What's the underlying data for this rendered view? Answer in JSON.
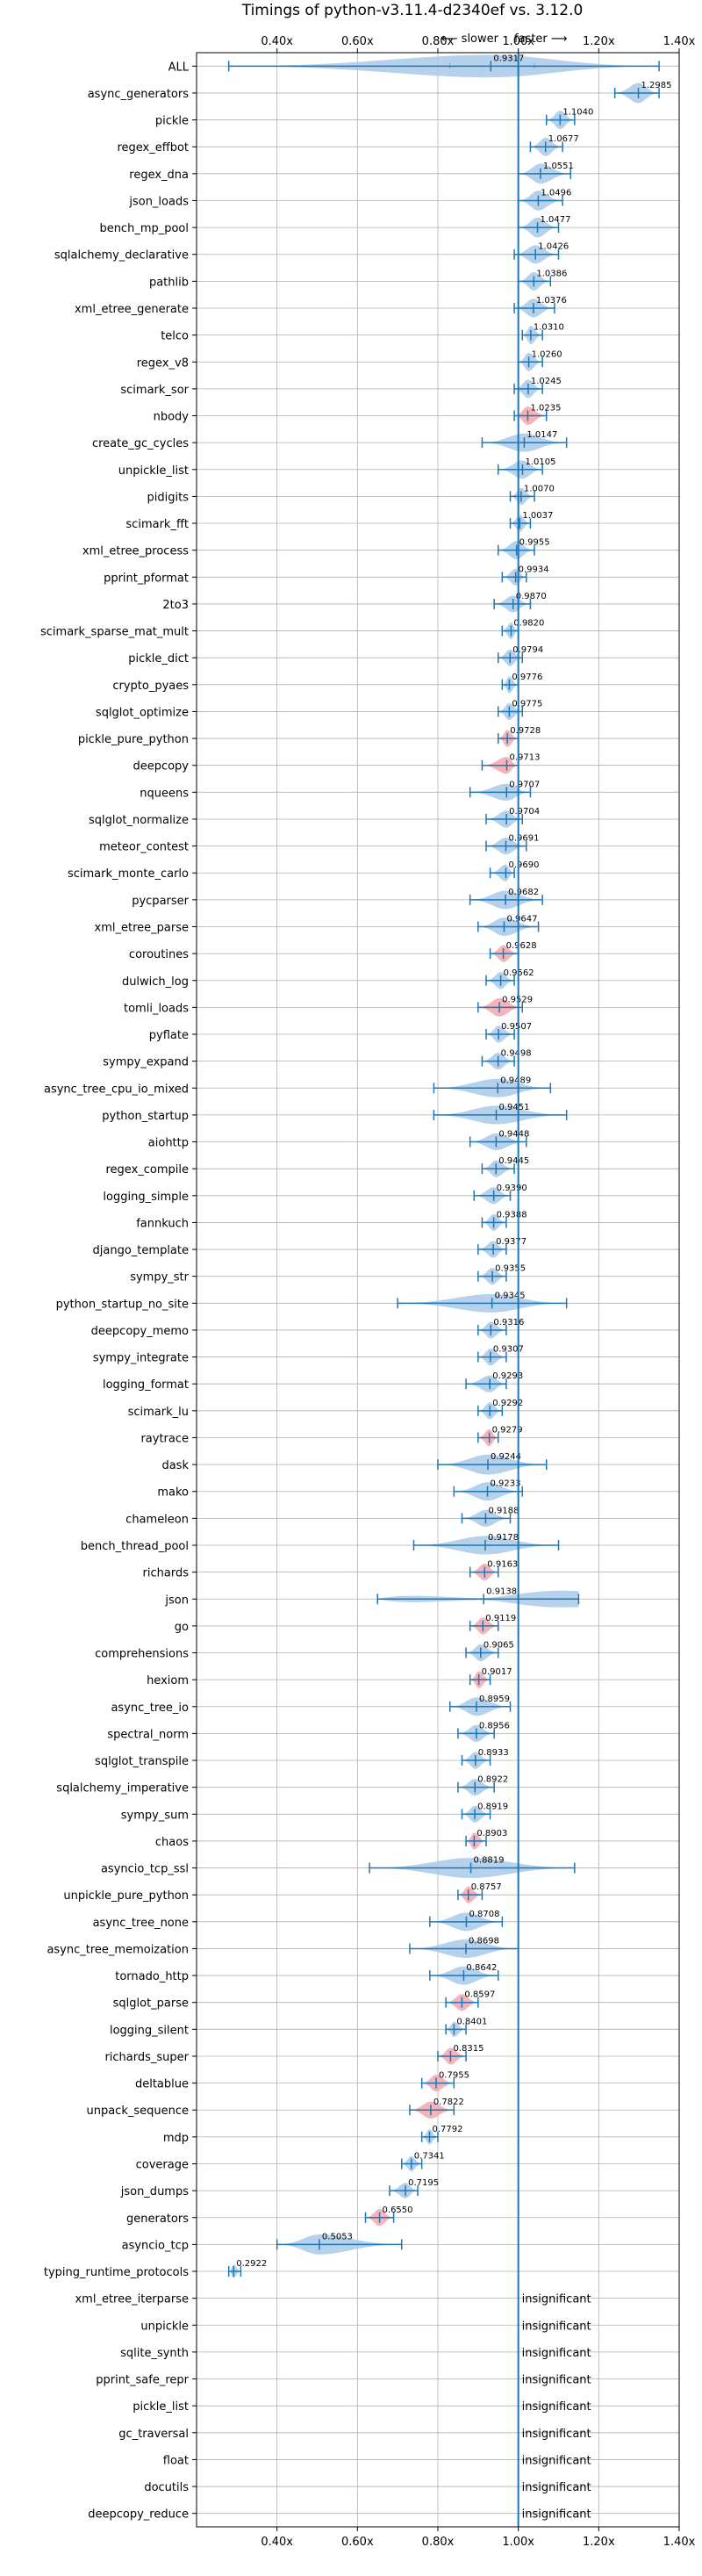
{
  "chart_data": {
    "type": "violin",
    "title": "Timings of python-v3.11.4-d2340ef vs. 3.12.0",
    "slower_label": "⟵ slower",
    "faster_label": "faster ⟶",
    "xlim": [
      0.2,
      1.4
    ],
    "xticks": [
      0.4,
      0.6,
      0.8,
      1.0,
      1.2,
      1.4
    ],
    "xtick_labels": [
      "0.40x",
      "0.60x",
      "0.80x",
      "1.00x",
      "1.20x",
      "1.40x"
    ],
    "reference_line": 1.0,
    "grid": true,
    "colors": {
      "violin": "#a9c9e8",
      "highlight": "#f5a6ad",
      "line": "#1f77b4"
    },
    "benchmarks": [
      {
        "name": "ALL",
        "median": 0.9317,
        "label": "0.9317",
        "min": 0.28,
        "max": 1.35,
        "q1": 0.83,
        "q3": 1.04,
        "width": 0.25
      },
      {
        "name": "async_generators",
        "median": 1.2985,
        "label": "1.2985",
        "min": 1.24,
        "max": 1.35,
        "width": 0.06
      },
      {
        "name": "pickle",
        "median": 1.104,
        "label": "1.1040",
        "min": 1.07,
        "max": 1.14,
        "width": 0.05
      },
      {
        "name": "regex_effbot",
        "median": 1.0677,
        "label": "1.0677",
        "min": 1.03,
        "max": 1.11,
        "width": 0.05
      },
      {
        "name": "regex_dna",
        "median": 1.0551,
        "label": "1.0551",
        "min": 1.0,
        "max": 1.13,
        "width": 0.06
      },
      {
        "name": "json_loads",
        "median": 1.0496,
        "label": "1.0496",
        "min": 1.0,
        "max": 1.11,
        "width": 0.06
      },
      {
        "name": "bench_mp_pool",
        "median": 1.0477,
        "label": "1.0477",
        "min": 1.0,
        "max": 1.1,
        "width": 0.06
      },
      {
        "name": "sqlalchemy_declarative",
        "median": 1.0426,
        "label": "1.0426",
        "min": 0.99,
        "max": 1.1,
        "width": 0.05
      },
      {
        "name": "pathlib",
        "median": 1.0386,
        "label": "1.0386",
        "min": 1.0,
        "max": 1.08,
        "width": 0.05
      },
      {
        "name": "xml_etree_generate",
        "median": 1.0376,
        "label": "1.0376",
        "min": 0.99,
        "max": 1.09,
        "width": 0.05
      },
      {
        "name": "telco",
        "median": 1.031,
        "label": "1.0310",
        "min": 1.01,
        "max": 1.06,
        "width": 0.05
      },
      {
        "name": "regex_v8",
        "median": 1.026,
        "label": "1.0260",
        "min": 1.0,
        "max": 1.06,
        "width": 0.05
      },
      {
        "name": "scimark_sor",
        "median": 1.0245,
        "label": "1.0245",
        "min": 0.99,
        "max": 1.06,
        "width": 0.05
      },
      {
        "name": "nbody",
        "median": 1.0235,
        "label": "1.0235",
        "min": 0.99,
        "max": 1.07,
        "width": 0.05,
        "highlight": true
      },
      {
        "name": "create_gc_cycles",
        "median": 1.0147,
        "label": "1.0147",
        "min": 0.91,
        "max": 1.12,
        "width": 0.05
      },
      {
        "name": "unpickle_list",
        "median": 1.0105,
        "label": "1.0105",
        "min": 0.95,
        "max": 1.06,
        "width": 0.05
      },
      {
        "name": "pidigits",
        "median": 1.007,
        "label": "1.0070",
        "min": 0.98,
        "max": 1.04,
        "width": 0.04
      },
      {
        "name": "scimark_fft",
        "median": 1.0037,
        "label": "1.0037",
        "min": 0.98,
        "max": 1.03,
        "width": 0.04
      },
      {
        "name": "xml_etree_process",
        "median": 0.9955,
        "label": "0.9955",
        "min": 0.95,
        "max": 1.04,
        "width": 0.05
      },
      {
        "name": "pprint_pformat",
        "median": 0.9934,
        "label": "0.9934",
        "min": 0.96,
        "max": 1.02,
        "width": 0.04
      },
      {
        "name": "2to3",
        "median": 0.987,
        "label": "0.9870",
        "min": 0.94,
        "max": 1.03,
        "width": 0.04
      },
      {
        "name": "scimark_sparse_mat_mult",
        "median": 0.982,
        "label": "0.9820",
        "min": 0.96,
        "max": 1.0,
        "width": 0.04
      },
      {
        "name": "pickle_dict",
        "median": 0.9794,
        "label": "0.9794",
        "min": 0.95,
        "max": 1.01,
        "width": 0.04
      },
      {
        "name": "crypto_pyaes",
        "median": 0.9776,
        "label": "0.9776",
        "min": 0.96,
        "max": 1.0,
        "width": 0.04
      },
      {
        "name": "sqlglot_optimize",
        "median": 0.9775,
        "label": "0.9775",
        "min": 0.95,
        "max": 1.01,
        "width": 0.04
      },
      {
        "name": "pickle_pure_python",
        "median": 0.9728,
        "label": "0.9728",
        "min": 0.95,
        "max": 1.0,
        "width": 0.04,
        "highlight": true
      },
      {
        "name": "deepcopy",
        "median": 0.9713,
        "label": "0.9713",
        "min": 0.91,
        "max": 1.0,
        "width": 0.04,
        "highlight": true
      },
      {
        "name": "nqueens",
        "median": 0.9707,
        "label": "0.9707",
        "min": 0.88,
        "max": 1.03,
        "width": 0.04
      },
      {
        "name": "sqlglot_normalize",
        "median": 0.9704,
        "label": "0.9704",
        "min": 0.92,
        "max": 1.01,
        "width": 0.04
      },
      {
        "name": "meteor_contest",
        "median": 0.9691,
        "label": "0.9691",
        "min": 0.92,
        "max": 1.02,
        "width": 0.04
      },
      {
        "name": "scimark_monte_carlo",
        "median": 0.969,
        "label": "0.9690",
        "min": 0.93,
        "max": 0.99,
        "width": 0.04
      },
      {
        "name": "pycparser",
        "median": 0.9682,
        "label": "0.9682",
        "min": 0.88,
        "max": 1.06,
        "width": 0.05
      },
      {
        "name": "xml_etree_parse",
        "median": 0.9647,
        "label": "0.9647",
        "min": 0.9,
        "max": 1.05,
        "width": 0.05
      },
      {
        "name": "coroutines",
        "median": 0.9628,
        "label": "0.9628",
        "min": 0.93,
        "max": 1.0,
        "width": 0.04,
        "highlight": true
      },
      {
        "name": "dulwich_log",
        "median": 0.9562,
        "label": "0.9562",
        "min": 0.92,
        "max": 0.99,
        "width": 0.04
      },
      {
        "name": "tomli_loads",
        "median": 0.9529,
        "label": "0.9529",
        "min": 0.9,
        "max": 1.01,
        "width": 0.05,
        "highlight": true
      },
      {
        "name": "pyflate",
        "median": 0.9507,
        "label": "0.9507",
        "min": 0.92,
        "max": 0.99,
        "width": 0.04
      },
      {
        "name": "sympy_expand",
        "median": 0.9498,
        "label": "0.9498",
        "min": 0.91,
        "max": 0.99,
        "width": 0.04
      },
      {
        "name": "async_tree_cpu_io_mixed",
        "median": 0.9489,
        "label": "0.9489",
        "min": 0.79,
        "max": 1.08,
        "width": 0.05
      },
      {
        "name": "python_startup",
        "median": 0.9451,
        "label": "0.9451",
        "min": 0.79,
        "max": 1.12,
        "width": 0.05
      },
      {
        "name": "aiohttp",
        "median": 0.9448,
        "label": "0.9448",
        "min": 0.88,
        "max": 1.02,
        "width": 0.04
      },
      {
        "name": "regex_compile",
        "median": 0.9445,
        "label": "0.9445",
        "min": 0.91,
        "max": 0.99,
        "width": 0.04
      },
      {
        "name": "logging_simple",
        "median": 0.939,
        "label": "0.9390",
        "min": 0.89,
        "max": 0.98,
        "width": 0.04
      },
      {
        "name": "fannkuch",
        "median": 0.9388,
        "label": "0.9388",
        "min": 0.91,
        "max": 0.97,
        "width": 0.04
      },
      {
        "name": "django_template",
        "median": 0.9377,
        "label": "0.9377",
        "min": 0.9,
        "max": 0.97,
        "width": 0.04
      },
      {
        "name": "sympy_str",
        "median": 0.9355,
        "label": "0.9355",
        "min": 0.9,
        "max": 0.97,
        "width": 0.04
      },
      {
        "name": "python_startup_no_site",
        "median": 0.9345,
        "label": "0.9345",
        "min": 0.7,
        "max": 1.12,
        "width": 0.05
      },
      {
        "name": "deepcopy_memo",
        "median": 0.9316,
        "label": "0.9316",
        "min": 0.9,
        "max": 0.97,
        "width": 0.04
      },
      {
        "name": "sympy_integrate",
        "median": 0.9307,
        "label": "0.9307",
        "min": 0.9,
        "max": 0.97,
        "width": 0.04
      },
      {
        "name": "logging_format",
        "median": 0.9293,
        "label": "0.9293",
        "min": 0.87,
        "max": 0.97,
        "width": 0.04
      },
      {
        "name": "scimark_lu",
        "median": 0.9292,
        "label": "0.9292",
        "min": 0.9,
        "max": 0.96,
        "width": 0.04
      },
      {
        "name": "raytrace",
        "median": 0.9279,
        "label": "0.9279",
        "min": 0.9,
        "max": 0.95,
        "width": 0.04,
        "highlight": true
      },
      {
        "name": "dask",
        "median": 0.9244,
        "label": "0.9244",
        "min": 0.8,
        "max": 1.07,
        "width": 0.06
      },
      {
        "name": "mako",
        "median": 0.9233,
        "label": "0.9233",
        "min": 0.84,
        "max": 1.01,
        "width": 0.05
      },
      {
        "name": "chameleon",
        "median": 0.9188,
        "label": "0.9188",
        "min": 0.86,
        "max": 0.98,
        "width": 0.04
      },
      {
        "name": "bench_thread_pool",
        "median": 0.9178,
        "label": "0.9178",
        "min": 0.74,
        "max": 1.1,
        "width": 0.05
      },
      {
        "name": "richards",
        "median": 0.9163,
        "label": "0.9163",
        "min": 0.88,
        "max": 0.95,
        "width": 0.04,
        "highlight": true
      },
      {
        "name": "json",
        "median": 0.9138,
        "label": "0.9138",
        "min": 0.65,
        "max": 1.15,
        "width": 0.06,
        "bimodal": true
      },
      {
        "name": "go",
        "median": 0.9119,
        "label": "0.9119",
        "min": 0.88,
        "max": 0.95,
        "width": 0.04,
        "highlight": true
      },
      {
        "name": "comprehensions",
        "median": 0.9065,
        "label": "0.9065",
        "min": 0.87,
        "max": 0.95,
        "width": 0.04
      },
      {
        "name": "hexiom",
        "median": 0.9017,
        "label": "0.9017",
        "min": 0.88,
        "max": 0.93,
        "width": 0.04,
        "highlight": true
      },
      {
        "name": "async_tree_io",
        "median": 0.8959,
        "label": "0.8959",
        "min": 0.83,
        "max": 0.98,
        "width": 0.05
      },
      {
        "name": "spectral_norm",
        "median": 0.8956,
        "label": "0.8956",
        "min": 0.85,
        "max": 0.94,
        "width": 0.04
      },
      {
        "name": "sqlglot_transpile",
        "median": 0.8933,
        "label": "0.8933",
        "min": 0.86,
        "max": 0.93,
        "width": 0.04
      },
      {
        "name": "sqlalchemy_imperative",
        "median": 0.8922,
        "label": "0.8922",
        "min": 0.85,
        "max": 0.94,
        "width": 0.04
      },
      {
        "name": "sympy_sum",
        "median": 0.8919,
        "label": "0.8919",
        "min": 0.86,
        "max": 0.93,
        "width": 0.04
      },
      {
        "name": "chaos",
        "median": 0.8903,
        "label": "0.8903",
        "min": 0.87,
        "max": 0.92,
        "width": 0.04,
        "highlight": true
      },
      {
        "name": "asyncio_tcp_ssl",
        "median": 0.8819,
        "label": "0.8819",
        "min": 0.63,
        "max": 1.14,
        "width": 0.06
      },
      {
        "name": "unpickle_pure_python",
        "median": 0.8757,
        "label": "0.8757",
        "min": 0.85,
        "max": 0.91,
        "width": 0.04,
        "highlight": true
      },
      {
        "name": "async_tree_none",
        "median": 0.8708,
        "label": "0.8708",
        "min": 0.78,
        "max": 0.96,
        "width": 0.05
      },
      {
        "name": "async_tree_memoization",
        "median": 0.8698,
        "label": "0.8698",
        "min": 0.73,
        "max": 1.0,
        "width": 0.05
      },
      {
        "name": "tornado_http",
        "median": 0.8642,
        "label": "0.8642",
        "min": 0.78,
        "max": 0.95,
        "width": 0.05
      },
      {
        "name": "sqlglot_parse",
        "median": 0.8597,
        "label": "0.8597",
        "min": 0.82,
        "max": 0.9,
        "width": 0.04,
        "highlight": true
      },
      {
        "name": "logging_silent",
        "median": 0.8401,
        "label": "0.8401",
        "min": 0.82,
        "max": 0.87,
        "width": 0.03
      },
      {
        "name": "richards_super",
        "median": 0.8315,
        "label": "0.8315",
        "min": 0.8,
        "max": 0.87,
        "width": 0.04,
        "highlight": true
      },
      {
        "name": "deltablue",
        "median": 0.7955,
        "label": "0.7955",
        "min": 0.76,
        "max": 0.84,
        "width": 0.04,
        "highlight": true
      },
      {
        "name": "unpack_sequence",
        "median": 0.7822,
        "label": "0.7822",
        "min": 0.73,
        "max": 0.84,
        "width": 0.04,
        "highlight": true
      },
      {
        "name": "mdp",
        "median": 0.7792,
        "label": "0.7792",
        "min": 0.76,
        "max": 0.8,
        "width": 0.03
      },
      {
        "name": "coverage",
        "median": 0.7341,
        "label": "0.7341",
        "min": 0.71,
        "max": 0.76,
        "width": 0.03
      },
      {
        "name": "json_dumps",
        "median": 0.7195,
        "label": "0.7195",
        "min": 0.68,
        "max": 0.75,
        "width": 0.03
      },
      {
        "name": "generators",
        "median": 0.655,
        "label": "0.6550",
        "min": 0.62,
        "max": 0.69,
        "width": 0.04,
        "highlight": true
      },
      {
        "name": "asyncio_tcp",
        "median": 0.5053,
        "label": "0.5053",
        "min": 0.4,
        "max": 0.71,
        "width": 0.06
      },
      {
        "name": "typing_runtime_protocols",
        "median": 0.2922,
        "label": "0.2922",
        "min": 0.28,
        "max": 0.31,
        "width": 0.02
      },
      {
        "name": "xml_etree_iterparse",
        "insignificant": true,
        "label": "insignificant"
      },
      {
        "name": "unpickle",
        "insignificant": true,
        "label": "insignificant"
      },
      {
        "name": "sqlite_synth",
        "insignificant": true,
        "label": "insignificant"
      },
      {
        "name": "pprint_safe_repr",
        "insignificant": true,
        "label": "insignificant"
      },
      {
        "name": "pickle_list",
        "insignificant": true,
        "label": "insignificant"
      },
      {
        "name": "gc_traversal",
        "insignificant": true,
        "label": "insignificant"
      },
      {
        "name": "float",
        "insignificant": true,
        "label": "insignificant"
      },
      {
        "name": "docutils",
        "insignificant": true,
        "label": "insignificant"
      },
      {
        "name": "deepcopy_reduce",
        "insignificant": true,
        "label": "insignificant"
      }
    ]
  }
}
